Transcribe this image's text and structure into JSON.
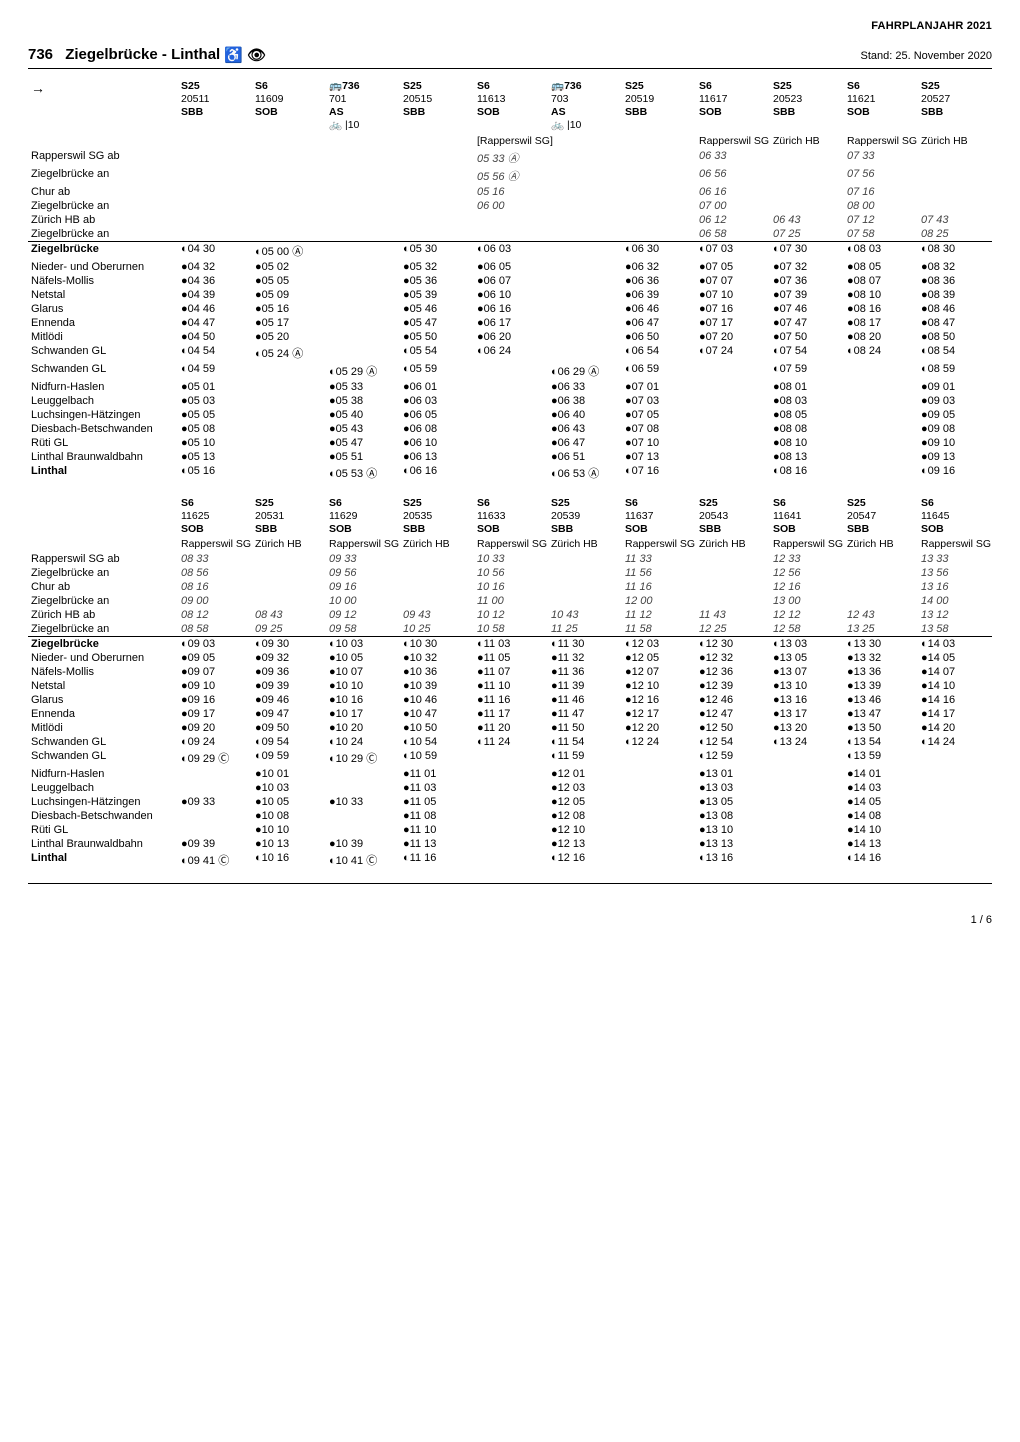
{
  "meta": {
    "year_label": "FAHRPLANJAHR 2021",
    "route_number": "736",
    "route_title": "Ziegelbrücke - Linthal",
    "stand": "Stand: 25. November 2020",
    "page": "1 / 6"
  },
  "block1": {
    "headers": [
      {
        "code": "S25",
        "num": "20511",
        "op": "SBB",
        "extra": ""
      },
      {
        "code": "S6",
        "num": "11609",
        "op": "SOB",
        "extra": ""
      },
      {
        "code": "🚌736",
        "num": "701",
        "op": "AS",
        "extra": "🚲 |10"
      },
      {
        "code": "S25",
        "num": "20515",
        "op": "SBB",
        "extra": ""
      },
      {
        "code": "S6",
        "num": "11613",
        "op": "SOB",
        "extra": ""
      },
      {
        "code": "🚌736",
        "num": "703",
        "op": "AS",
        "extra": "🚲 |10"
      },
      {
        "code": "S25",
        "num": "20519",
        "op": "SBB",
        "extra": ""
      },
      {
        "code": "S6",
        "num": "11617",
        "op": "SOB",
        "extra": ""
      },
      {
        "code": "S25",
        "num": "20523",
        "op": "SBB",
        "extra": ""
      },
      {
        "code": "S6",
        "num": "11621",
        "op": "SOB",
        "extra": ""
      },
      {
        "code": "S25",
        "num": "20527",
        "op": "SBB",
        "extra": ""
      }
    ],
    "sublabels": [
      "",
      "",
      "",
      "",
      "[Rapperswil SG]",
      "",
      "",
      "Rapperswil SG",
      "Zürich HB",
      "Rapperswil SG",
      "Zürich HB"
    ],
    "stops_upper": [
      {
        "name": "Rapperswil SG ab",
        "t": [
          "",
          "",
          "",
          "",
          "05 33 Ⓐ",
          "",
          "",
          "06 33",
          "",
          "07 33",
          ""
        ]
      },
      {
        "name": "Ziegelbrücke an",
        "t": [
          "",
          "",
          "",
          "",
          "05 56 Ⓐ",
          "",
          "",
          "06 56",
          "",
          "07 56",
          ""
        ]
      },
      {
        "name": "Chur ab",
        "t": [
          "",
          "",
          "",
          "",
          "05 16",
          "",
          "",
          "06 16",
          "",
          "07 16",
          ""
        ]
      },
      {
        "name": "Ziegelbrücke an",
        "t": [
          "",
          "",
          "",
          "",
          "06 00",
          "",
          "",
          "07 00",
          "",
          "08 00",
          ""
        ]
      },
      {
        "name": "Zürich HB ab",
        "t": [
          "",
          "",
          "",
          "",
          "",
          "",
          "",
          "06 12",
          "06 43",
          "07 12",
          "07 43"
        ]
      },
      {
        "name": "Ziegelbrücke an",
        "t": [
          "",
          "",
          "",
          "",
          "",
          "",
          "",
          "06 58",
          "07 25",
          "07 58",
          "08 25"
        ]
      }
    ],
    "stops_lower": [
      {
        "name": "Ziegelbrücke",
        "bold": true,
        "t": [
          "◐04 30",
          "◐05 00 Ⓐ",
          "",
          "◐05 30",
          "◐06 03",
          "",
          "◐06 30",
          "◐07 03",
          "◐07 30",
          "◐08 03",
          "◐08 30"
        ]
      },
      {
        "name": "Nieder- und Oberurnen",
        "t": [
          "●04 32",
          "●05 02",
          "",
          "●05 32",
          "●06 05",
          "",
          "●06 32",
          "●07 05",
          "●07 32",
          "●08 05",
          "●08 32"
        ]
      },
      {
        "name": "Näfels-Mollis",
        "t": [
          "●04 36",
          "●05 05",
          "",
          "●05 36",
          "●06 07",
          "",
          "●06 36",
          "●07 07",
          "●07 36",
          "●08 07",
          "●08 36"
        ]
      },
      {
        "name": "Netstal",
        "t": [
          "●04 39",
          "●05 09",
          "",
          "●05 39",
          "●06 10",
          "",
          "●06 39",
          "●07 10",
          "●07 39",
          "●08 10",
          "●08 39"
        ]
      },
      {
        "name": "Glarus",
        "t": [
          "●04 46",
          "●05 16",
          "",
          "●05 46",
          "●06 16",
          "",
          "●06 46",
          "●07 16",
          "●07 46",
          "●08 16",
          "●08 46"
        ]
      },
      {
        "name": "Ennenda",
        "t": [
          "●04 47",
          "●05 17",
          "",
          "●05 47",
          "●06 17",
          "",
          "●06 47",
          "●07 17",
          "●07 47",
          "●08 17",
          "●08 47"
        ]
      },
      {
        "name": "Mitlödi",
        "t": [
          "●04 50",
          "●05 20",
          "",
          "●05 50",
          "●06 20",
          "",
          "●06 50",
          "●07 20",
          "●07 50",
          "●08 20",
          "●08 50"
        ]
      },
      {
        "name": "Schwanden GL",
        "t": [
          "◐04 54",
          "◐05 24 Ⓐ",
          "",
          "◐05 54",
          "◐06 24",
          "",
          "◐06 54",
          "◐07 24",
          "◐07 54",
          "◐08 24",
          "◐08 54"
        ]
      },
      {
        "name": "Schwanden GL",
        "t": [
          "◐04 59",
          "",
          "◐05 29 Ⓐ",
          "◐05 59",
          "",
          "◐06 29 Ⓐ",
          "◐06 59",
          "",
          "◐07 59",
          "",
          "◐08 59"
        ]
      },
      {
        "name": "Nidfurn-Haslen",
        "t": [
          "●05 01",
          "",
          "●05 33",
          "●06 01",
          "",
          "●06 33",
          "●07 01",
          "",
          "●08 01",
          "",
          "●09 01"
        ]
      },
      {
        "name": "Leuggelbach",
        "t": [
          "●05 03",
          "",
          "●05 38",
          "●06 03",
          "",
          "●06 38",
          "●07 03",
          "",
          "●08 03",
          "",
          "●09 03"
        ]
      },
      {
        "name": "Luchsingen-Hätzingen",
        "t": [
          "●05 05",
          "",
          "●05 40",
          "●06 05",
          "",
          "●06 40",
          "●07 05",
          "",
          "●08 05",
          "",
          "●09 05"
        ]
      },
      {
        "name": "Diesbach-Betschwanden",
        "t": [
          "●05 08",
          "",
          "●05 43",
          "●06 08",
          "",
          "●06 43",
          "●07 08",
          "",
          "●08 08",
          "",
          "●09 08"
        ]
      },
      {
        "name": "Rüti GL",
        "t": [
          "●05 10",
          "",
          "●05 47",
          "●06 10",
          "",
          "●06 47",
          "●07 10",
          "",
          "●08 10",
          "",
          "●09 10"
        ]
      },
      {
        "name": "Linthal Braunwaldbahn",
        "t": [
          "●05 13",
          "",
          "●05 51",
          "●06 13",
          "",
          "●06 51",
          "●07 13",
          "",
          "●08 13",
          "",
          "●09 13"
        ]
      },
      {
        "name": "Linthal",
        "bold": true,
        "t": [
          "◐05 16",
          "",
          "◐05 53 Ⓐ",
          "◐06 16",
          "",
          "◐06 53 Ⓐ",
          "◐07 16",
          "",
          "◐08 16",
          "",
          "◐09 16"
        ]
      }
    ]
  },
  "block2": {
    "headers": [
      {
        "code": "S6",
        "num": "11625",
        "op": "SOB"
      },
      {
        "code": "S25",
        "num": "20531",
        "op": "SBB"
      },
      {
        "code": "S6",
        "num": "11629",
        "op": "SOB"
      },
      {
        "code": "S25",
        "num": "20535",
        "op": "SBB"
      },
      {
        "code": "S6",
        "num": "11633",
        "op": "SOB"
      },
      {
        "code": "S25",
        "num": "20539",
        "op": "SBB"
      },
      {
        "code": "S6",
        "num": "11637",
        "op": "SOB"
      },
      {
        "code": "S25",
        "num": "20543",
        "op": "SBB"
      },
      {
        "code": "S6",
        "num": "11641",
        "op": "SOB"
      },
      {
        "code": "S25",
        "num": "20547",
        "op": "SBB"
      },
      {
        "code": "S6",
        "num": "11645",
        "op": "SOB"
      }
    ],
    "sublabels": [
      "Rapperswil SG",
      "Zürich HB",
      "Rapperswil SG",
      "Zürich HB",
      "Rapperswil SG",
      "Zürich HB",
      "Rapperswil SG",
      "Zürich HB",
      "Rapperswil SG",
      "Zürich HB",
      "Rapperswil SG"
    ],
    "stops_upper": [
      {
        "name": "Rapperswil SG ab",
        "t": [
          "08 33",
          "",
          "09 33",
          "",
          "10 33",
          "",
          "11 33",
          "",
          "12 33",
          "",
          "13 33"
        ]
      },
      {
        "name": "Ziegelbrücke an",
        "t": [
          "08 56",
          "",
          "09 56",
          "",
          "10 56",
          "",
          "11 56",
          "",
          "12 56",
          "",
          "13 56"
        ]
      },
      {
        "name": "Chur ab",
        "t": [
          "08 16",
          "",
          "09 16",
          "",
          "10 16",
          "",
          "11 16",
          "",
          "12 16",
          "",
          "13 16"
        ]
      },
      {
        "name": "Ziegelbrücke an",
        "t": [
          "09 00",
          "",
          "10 00",
          "",
          "11 00",
          "",
          "12 00",
          "",
          "13 00",
          "",
          "14 00"
        ]
      },
      {
        "name": "Zürich HB ab",
        "t": [
          "08 12",
          "08 43",
          "09 12",
          "09 43",
          "10 12",
          "10 43",
          "11 12",
          "11 43",
          "12 12",
          "12 43",
          "13 12"
        ]
      },
      {
        "name": "Ziegelbrücke an",
        "t": [
          "08 58",
          "09 25",
          "09 58",
          "10 25",
          "10 58",
          "11 25",
          "11 58",
          "12 25",
          "12 58",
          "13 25",
          "13 58"
        ]
      }
    ],
    "stops_lower": [
      {
        "name": "Ziegelbrücke",
        "bold": true,
        "t": [
          "◐09 03",
          "◐09 30",
          "◐10 03",
          "◐10 30",
          "◐11 03",
          "◐11 30",
          "◐12 03",
          "◐12 30",
          "◐13 03",
          "◐13 30",
          "◐14 03"
        ]
      },
      {
        "name": "Nieder- und Oberurnen",
        "t": [
          "●09 05",
          "●09 32",
          "●10 05",
          "●10 32",
          "●11 05",
          "●11 32",
          "●12 05",
          "●12 32",
          "●13 05",
          "●13 32",
          "●14 05"
        ]
      },
      {
        "name": "Näfels-Mollis",
        "t": [
          "●09 07",
          "●09 36",
          "●10 07",
          "●10 36",
          "●11 07",
          "●11 36",
          "●12 07",
          "●12 36",
          "●13 07",
          "●13 36",
          "●14 07"
        ]
      },
      {
        "name": "Netstal",
        "t": [
          "●09 10",
          "●09 39",
          "●10 10",
          "●10 39",
          "●11 10",
          "●11 39",
          "●12 10",
          "●12 39",
          "●13 10",
          "●13 39",
          "●14 10"
        ]
      },
      {
        "name": "Glarus",
        "t": [
          "●09 16",
          "●09 46",
          "●10 16",
          "●10 46",
          "●11 16",
          "●11 46",
          "●12 16",
          "●12 46",
          "●13 16",
          "●13 46",
          "●14 16"
        ]
      },
      {
        "name": "Ennenda",
        "t": [
          "●09 17",
          "●09 47",
          "●10 17",
          "●10 47",
          "●11 17",
          "●11 47",
          "●12 17",
          "●12 47",
          "●13 17",
          "●13 47",
          "●14 17"
        ]
      },
      {
        "name": "Mitlödi",
        "t": [
          "●09 20",
          "●09 50",
          "●10 20",
          "●10 50",
          "●11 20",
          "●11 50",
          "●12 20",
          "●12 50",
          "●13 20",
          "●13 50",
          "●14 20"
        ]
      },
      {
        "name": "Schwanden GL",
        "t": [
          "◐09 24",
          "◐09 54",
          "◐10 24",
          "◐10 54",
          "◐11 24",
          "◐11 54",
          "◐12 24",
          "◐12 54",
          "◐13 24",
          "◐13 54",
          "◐14 24"
        ]
      },
      {
        "name": "Schwanden GL",
        "t": [
          "◐09 29 Ⓒ",
          "◐09 59",
          "◐10 29 Ⓒ",
          "◐10 59",
          "",
          "◐11 59",
          "",
          "◐12 59",
          "",
          "◐13 59",
          ""
        ]
      },
      {
        "name": "Nidfurn-Haslen",
        "t": [
          "",
          "●10 01",
          "",
          "●11 01",
          "",
          "●12 01",
          "",
          "●13 01",
          "",
          "●14 01",
          ""
        ]
      },
      {
        "name": "Leuggelbach",
        "t": [
          "",
          "●10 03",
          "",
          "●11 03",
          "",
          "●12 03",
          "",
          "●13 03",
          "",
          "●14 03",
          ""
        ]
      },
      {
        "name": "Luchsingen-Hätzingen",
        "t": [
          "●09 33",
          "●10 05",
          "●10 33",
          "●11 05",
          "",
          "●12 05",
          "",
          "●13 05",
          "",
          "●14 05",
          ""
        ]
      },
      {
        "name": "Diesbach-Betschwanden",
        "t": [
          "",
          "●10 08",
          "",
          "●11 08",
          "",
          "●12 08",
          "",
          "●13 08",
          "",
          "●14 08",
          ""
        ]
      },
      {
        "name": "Rüti GL",
        "t": [
          "",
          "●10 10",
          "",
          "●11 10",
          "",
          "●12 10",
          "",
          "●13 10",
          "",
          "●14 10",
          ""
        ]
      },
      {
        "name": "Linthal Braunwaldbahn",
        "t": [
          "●09 39",
          "●10 13",
          "●10 39",
          "●11 13",
          "",
          "●12 13",
          "",
          "●13 13",
          "",
          "●14 13",
          ""
        ]
      },
      {
        "name": "Linthal",
        "bold": true,
        "t": [
          "◐09 41 Ⓒ",
          "◐10 16",
          "◐10 41 Ⓒ",
          "◐11 16",
          "",
          "◐12 16",
          "",
          "◐13 16",
          "",
          "◐14 16",
          ""
        ]
      }
    ]
  }
}
